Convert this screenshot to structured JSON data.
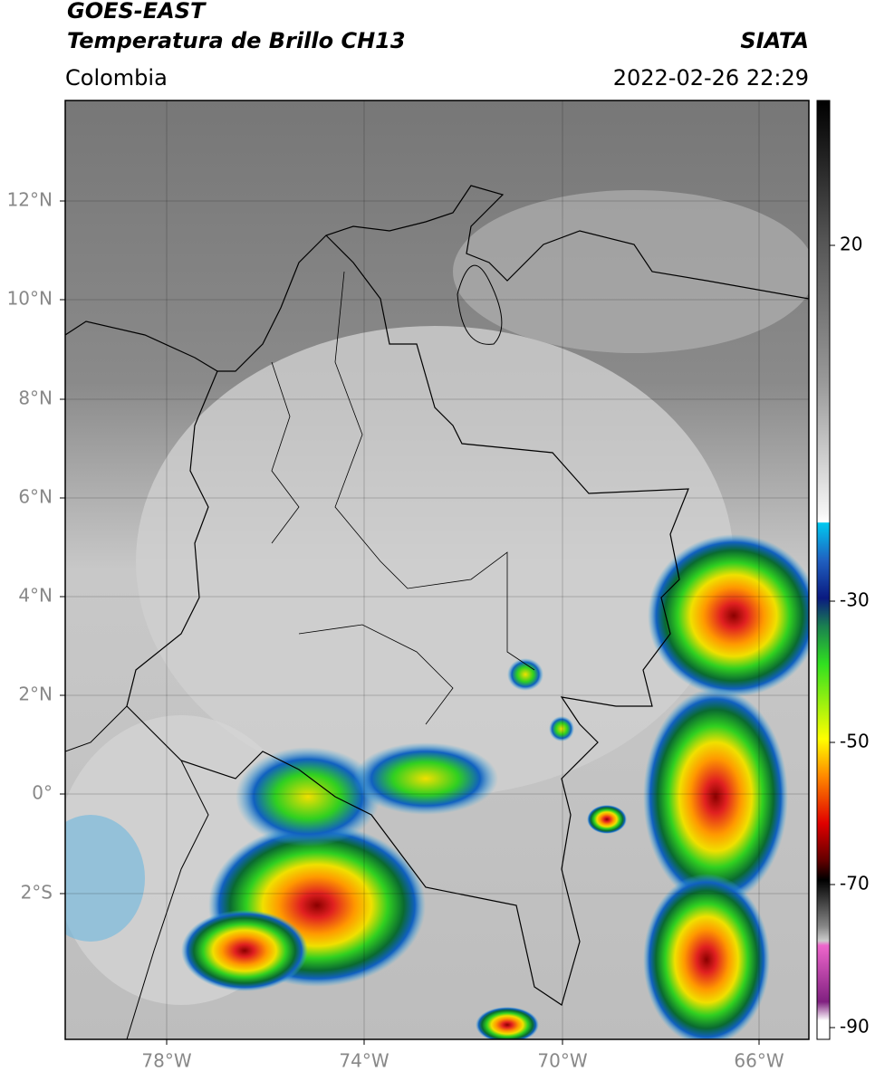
{
  "header": {
    "title_line1": "GOES-EAST",
    "title_line2": "Temperatura de Brillo CH13",
    "region": "Colombia",
    "source": "SIATA",
    "datetime": "2022-02-26 22:29"
  },
  "map": {
    "lat_labels": [
      "12°N",
      "10°N",
      "8°N",
      "6°N",
      "4°N",
      "2°N",
      "0°",
      "2°S"
    ],
    "lon_labels": [
      "78°W",
      "74°W",
      "70°W",
      "66°W"
    ]
  },
  "colorbar": {
    "tick_labels": [
      "20",
      "-30",
      "-50",
      "-70",
      "-90"
    ]
  }
}
